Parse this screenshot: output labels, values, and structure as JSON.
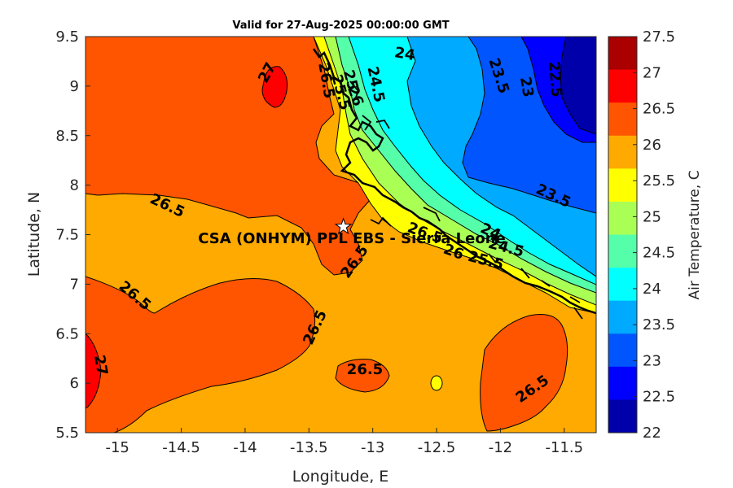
{
  "title": "Valid for 27-Aug-2025 00:00:00 GMT",
  "xlabel": "Longitude, E",
  "ylabel": "Latitude, N",
  "x_ticks": [
    "-15",
    "-14.5",
    "-14",
    "-13.5",
    "-13",
    "-12.5",
    "-12",
    "-11.5"
  ],
  "y_ticks": [
    "9.5",
    "9",
    "8.5",
    "8",
    "7.5",
    "7",
    "6.5",
    "6",
    "5.5"
  ],
  "site": {
    "label": "CSA (ONHYM) PPL EBS - Sierra Leone",
    "marker": "star-icon"
  },
  "colorbar": {
    "label": "Air Temperature, C",
    "ticks": [
      "27.5",
      "27",
      "26.5",
      "26",
      "25.5",
      "25",
      "24.5",
      "24",
      "23.5",
      "23",
      "22.5",
      "22"
    ],
    "colors": [
      "#aa0000",
      "#ff0000",
      "#ff5500",
      "#ffaa00",
      "#ffff00",
      "#aaff55",
      "#55ffaa",
      "#00ffff",
      "#00aaff",
      "#0055ff",
      "#0000ff",
      "#0000aa"
    ]
  },
  "contour_labels": [
    "27",
    "26.5",
    "24",
    "23.5",
    "23",
    "22.5",
    "25",
    "24.5",
    "26",
    "25.5",
    "26.5",
    "26.5",
    "26.5",
    "26.5",
    "26.5",
    "27",
    "26.5",
    "23.5",
    "24",
    "24.5",
    "26",
    "25.5",
    "26.5"
  ],
  "chart_data": {
    "type": "heatmap",
    "title": "Valid for 27-Aug-2025 00:00:00 GMT",
    "xlabel": "Longitude, E",
    "ylabel": "Latitude, N",
    "xlim": [
      -15.25,
      -11.25
    ],
    "ylim": [
      5.5,
      9.5
    ],
    "variable": "Air Temperature, C",
    "color_range": [
      22,
      27.5
    ],
    "levels": [
      22,
      22.5,
      23,
      23.5,
      24,
      24.5,
      25,
      25.5,
      26,
      26.5,
      27,
      27.5
    ],
    "site": {
      "name": "CSA (ONHYM) PPL EBS - Sierra Leone",
      "lon": -13.23,
      "lat": 7.58
    },
    "regions": [
      {
        "range": "26-26.5",
        "description": "background ocean"
      },
      {
        "range": "26.5-27",
        "description": "northwest offshore, western edge, central and southeast patches"
      },
      {
        "range": "27-27.5",
        "description": "small pockets near -13.75,9.0 and -15.2,6.1"
      },
      {
        "range": "22-25.5",
        "description": "coastal gradient to land in the northeast"
      }
    ]
  }
}
